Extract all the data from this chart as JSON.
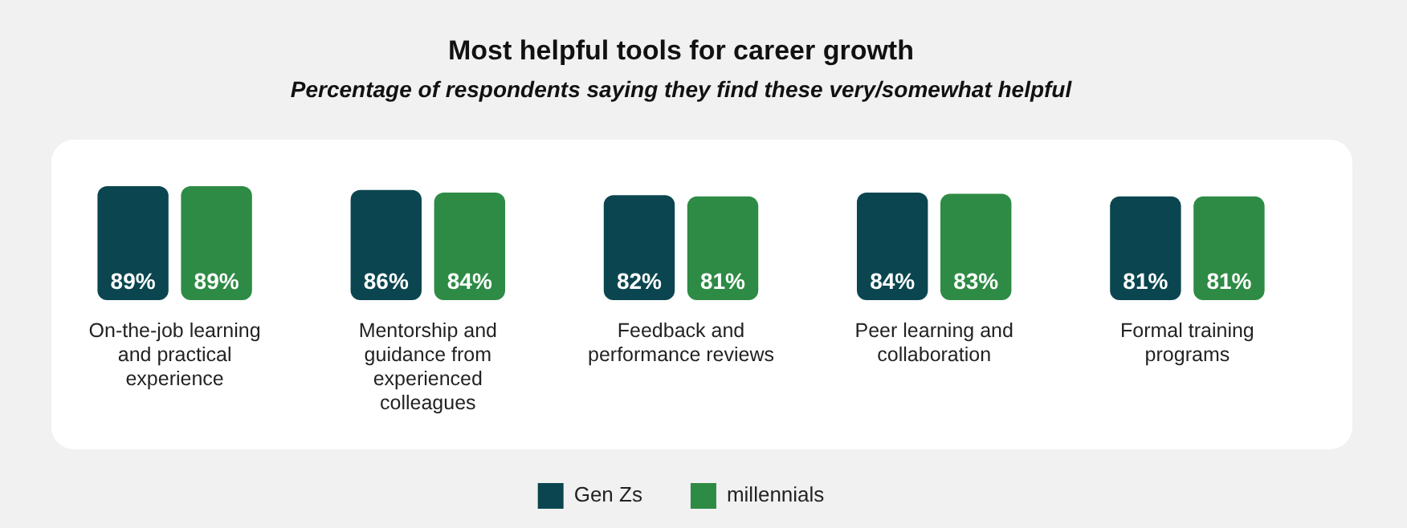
{
  "chart_data": {
    "type": "bar",
    "title": "Most helpful tools for career growth",
    "subtitle": "Percentage of respondents saying they find these very/somewhat helpful",
    "categories": [
      "On-the-job learning and practical experience",
      "Mentorship and guidance from experienced colleagues",
      "Feedback and performance reviews",
      "Peer learning and collaboration",
      "Formal training programs"
    ],
    "series": [
      {
        "name": "Gen Zs",
        "color": "#0b4650",
        "values": [
          89,
          86,
          82,
          84,
          81
        ],
        "value_labels": [
          "89%",
          "86%",
          "82%",
          "84%",
          "81%"
        ]
      },
      {
        "name": "millennials",
        "color": "#2e8b45",
        "values": [
          89,
          84,
          81,
          83,
          81
        ],
        "value_labels": [
          "89%",
          "84%",
          "81%",
          "83%",
          "81%"
        ]
      }
    ],
    "tick_labels": "x",
    "grid": false,
    "legend": "bottom"
  }
}
